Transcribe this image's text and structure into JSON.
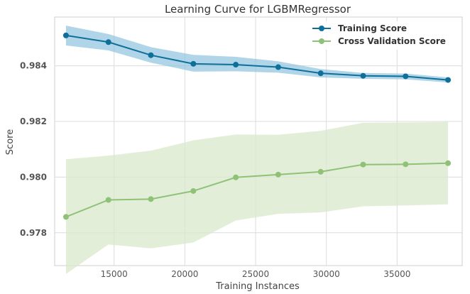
{
  "chart_data": {
    "type": "line",
    "title": "Learning Curve for LGBMRegressor",
    "xlabel": "Training Instances",
    "ylabel": "Score",
    "xlim": [
      10800,
      39600
    ],
    "ylim": [
      0.97682,
      0.98575
    ],
    "xticks": [
      15000,
      20000,
      25000,
      30000,
      35000
    ],
    "xtick_labels": [
      "15000",
      "20000",
      "25000",
      "30000",
      "35000"
    ],
    "yticks": [
      0.978,
      0.98,
      0.982,
      0.984
    ],
    "ytick_labels": [
      "0.978",
      "0.980",
      "0.982",
      "0.984"
    ],
    "grid": true,
    "legend_position": "top-right",
    "x": [
      11600,
      14600,
      17600,
      20600,
      23600,
      26600,
      29600,
      32600,
      35600,
      38600
    ],
    "series": [
      {
        "name": "Training Score",
        "color": "#1f77b4",
        "line_color": "#0e6f99",
        "band_color": "#8ec3de",
        "values": [
          0.98509,
          0.98485,
          0.98438,
          0.98407,
          0.98404,
          0.98395,
          0.98373,
          0.98364,
          0.98362,
          0.98349
        ],
        "lower": [
          0.98473,
          0.98455,
          0.98411,
          0.98379,
          0.9838,
          0.98375,
          0.98358,
          0.98353,
          0.98351,
          0.9834
        ],
        "upper": [
          0.98544,
          0.98514,
          0.98467,
          0.98439,
          0.98432,
          0.98416,
          0.98388,
          0.98374,
          0.98372,
          0.98358
        ]
      },
      {
        "name": "Cross Validation Score",
        "color": "#8fc276",
        "line_color": "#8fc276",
        "band_color": "#d9e8cc",
        "values": [
          0.97857,
          0.97918,
          0.97921,
          0.9795,
          0.97999,
          0.98009,
          0.98019,
          0.98045,
          0.98046,
          0.9805
        ],
        "lower": [
          0.97652,
          0.97758,
          0.97744,
          0.97765,
          0.97844,
          0.97868,
          0.97873,
          0.97895,
          0.97898,
          0.97902
        ],
        "upper": [
          0.98064,
          0.98077,
          0.98095,
          0.98132,
          0.98153,
          0.98152,
          0.98166,
          0.98195,
          0.98196,
          0.98198
        ]
      }
    ]
  }
}
